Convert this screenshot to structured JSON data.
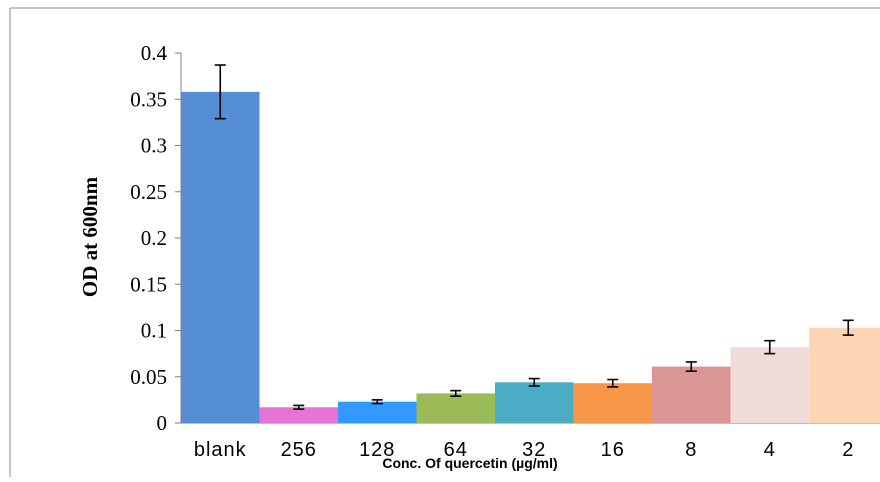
{
  "chart_data": {
    "type": "bar",
    "title": "",
    "xlabel": "Conc. Of quercetin (µg/ml)",
    "ylabel": "OD at 600nm",
    "ylim": [
      0,
      0.4
    ],
    "yticks": [
      "0",
      "0.05",
      "0.1",
      "0.15",
      "0.2",
      "0.25",
      "0.3",
      "0.35",
      "0.4"
    ],
    "categories": [
      "blank",
      "256",
      "128",
      "64",
      "32",
      "16",
      "8",
      "4",
      "2"
    ],
    "values": [
      0.358,
      0.017,
      0.023,
      0.032,
      0.044,
      0.043,
      0.061,
      0.082,
      0.103
    ],
    "errors": [
      0.029,
      0.002,
      0.002,
      0.003,
      0.004,
      0.004,
      0.005,
      0.007,
      0.008
    ],
    "colors": [
      "#558ed5",
      "#e872d6",
      "#3399ff",
      "#9bbb59",
      "#4bacc6",
      "#f79646",
      "#d99694",
      "#f2dcdb",
      "#fcd5b5"
    ],
    "grid": false,
    "legend": "none"
  }
}
